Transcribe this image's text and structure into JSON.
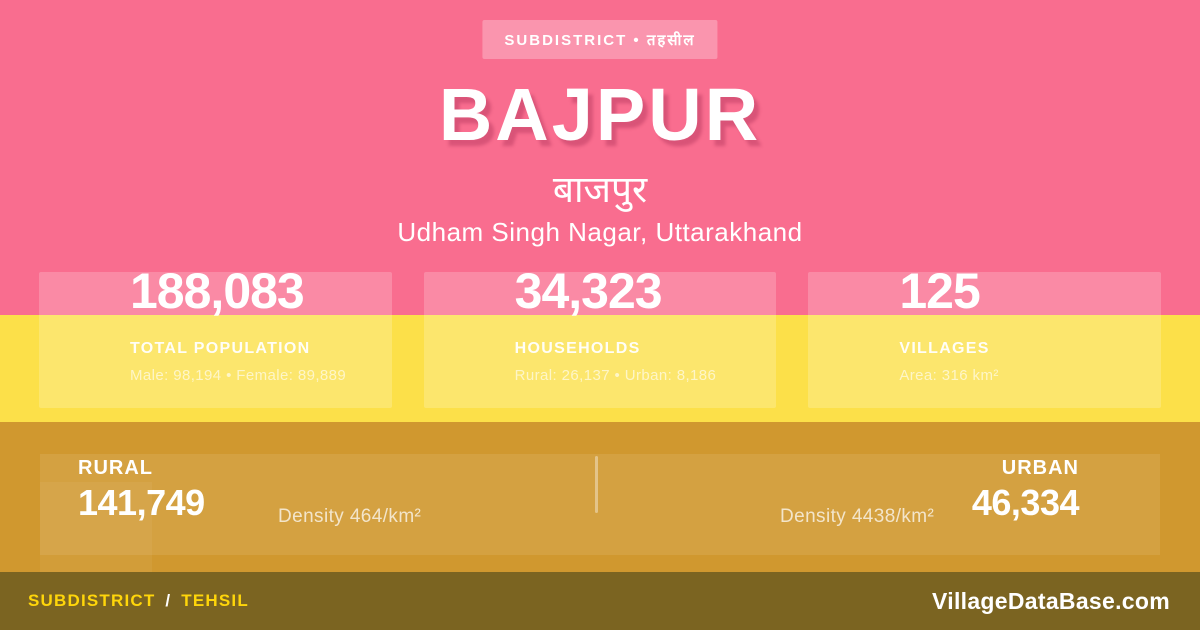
{
  "badge": {
    "label": "SUBDISTRICT • तहसील"
  },
  "title": "BAJPUR",
  "title_hindi": "बाजपुर",
  "location": "Udham Singh Nagar, Uttarakhand",
  "stats": [
    {
      "value": "188,083",
      "label": "TOTAL POPULATION",
      "detail": "Male: 98,194 • Female: 89,889"
    },
    {
      "value": "34,323",
      "label": "HOUSEHOLDS",
      "detail": "Rural: 26,137 • Urban: 8,186"
    },
    {
      "value": "125",
      "label": "VILLAGES",
      "detail": "Area: 316 km²"
    }
  ],
  "band": {
    "rural": {
      "label": "RURAL",
      "value": "141,749",
      "density": "Density 464/km²"
    },
    "urban": {
      "label": "URBAN",
      "value": "46,334",
      "density": "Density 4438/km²"
    }
  },
  "footer": {
    "left_primary": "SUBDISTRICT",
    "left_separator": "/",
    "left_secondary": "TEHSIL",
    "site": "VillageDataBase.com"
  },
  "colors": {
    "background_pink": "#F96D8F",
    "band_yellow": "#FCE049",
    "band_gold": "#D0982F",
    "footer_brown": "#7B6421",
    "accent_yellow": "#FFD60A"
  }
}
